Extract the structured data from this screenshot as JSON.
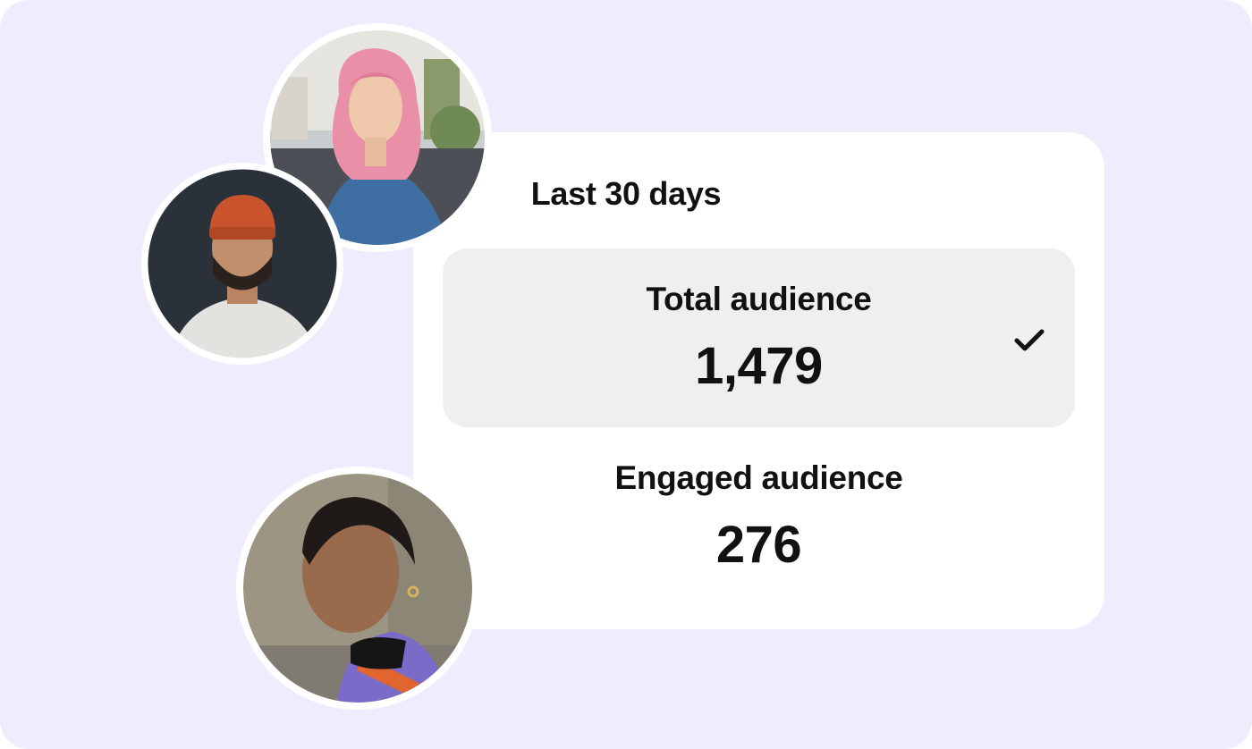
{
  "panel": {
    "title": "Last 30 days",
    "options": [
      {
        "label": "Total audience",
        "value": "1,479",
        "selected": true
      },
      {
        "label": "Engaged audience",
        "value": "276",
        "selected": false
      }
    ],
    "selected_icon": "check-icon"
  },
  "avatars": [
    {
      "icon": "person-photo-pink-hair"
    },
    {
      "icon": "person-photo-orange-beanie"
    },
    {
      "icon": "person-photo-short-hair"
    }
  ],
  "colors": {
    "background": "#f0ecfe",
    "card": "#ffffff",
    "selected_option": "#efefef",
    "text": "#111111"
  }
}
